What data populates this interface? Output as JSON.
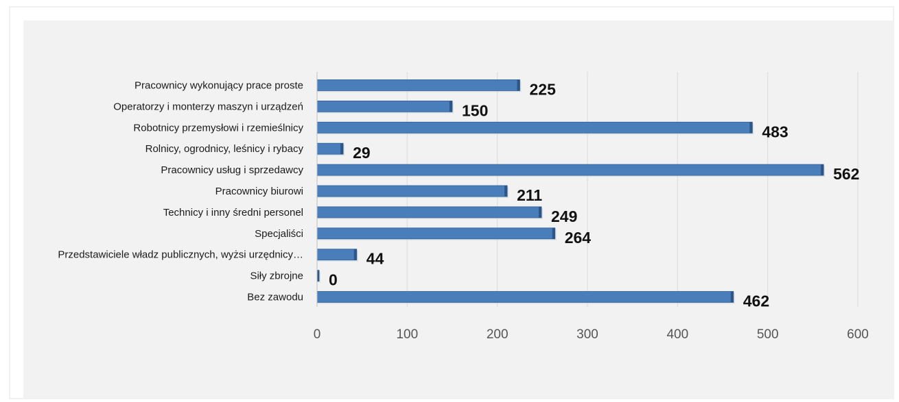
{
  "chart_data": {
    "type": "bar",
    "orientation": "horizontal",
    "categories": [
      "Pracownicy wykonujący prace proste",
      "Operatorzy i monterzy maszyn i urządzeń",
      "Robotnicy przemysłowi i rzemieślnicy",
      "Rolnicy, ogrodnicy, leśnicy i rybacy",
      "Pracownicy usług  i sprzedawcy",
      "Pracownicy biurowi",
      "Technicy i inny średni personel",
      "Specjaliści",
      "Przedstawiciele władz publicznych, wyżsi urzędnicy…",
      "Siły zbrojne",
      "Bez zawodu"
    ],
    "values": [
      225,
      150,
      483,
      29,
      562,
      211,
      249,
      264,
      44,
      0,
      462
    ],
    "data_labels": [
      "225",
      "150",
      "483",
      "29",
      "562",
      "211",
      "249",
      "264",
      "44",
      "0",
      "462"
    ],
    "x_ticks": [
      "0",
      "100",
      "200",
      "300",
      "400",
      "500",
      "600"
    ],
    "xlim": [
      0,
      600
    ],
    "title": "",
    "xlabel": "",
    "ylabel": "",
    "grid": true,
    "legend": "none",
    "colors": {
      "bar": "#4a7ebb",
      "bar_edge": "#2f5f97",
      "grid": "#d9d9d9",
      "plot_background": "#f2f2f2",
      "frame_background": "#ffffff",
      "frame_border": "#e3e3e3"
    }
  }
}
